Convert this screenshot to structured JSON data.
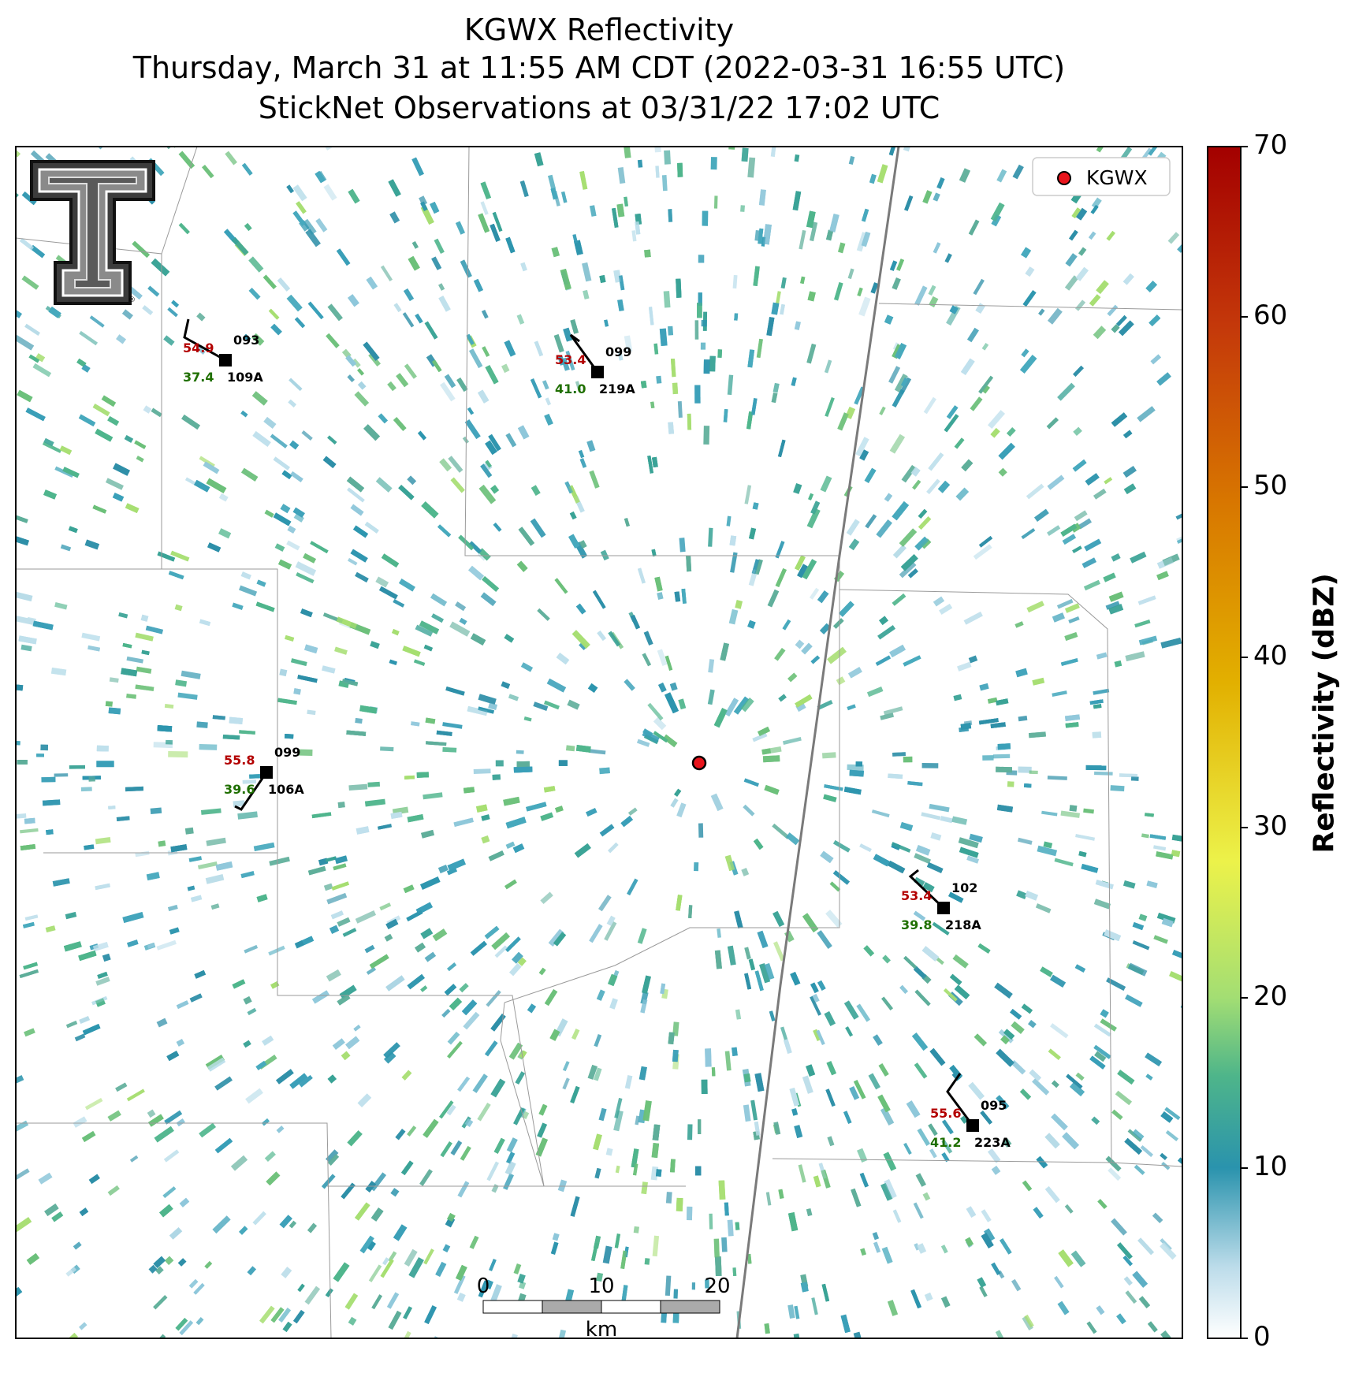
{
  "title": {
    "line1": "KGWX Reflectivity",
    "line2": "Thursday, March 31 at 11:55 AM CDT (2022-03-31 16:55 UTC)",
    "line3": "StickNet Observations at 03/31/22 17:02 UTC"
  },
  "legend": {
    "label": "KGWX",
    "marker_color": "#e8141c"
  },
  "colorbar": {
    "title": "Reflectivity (dBZ)",
    "ticks": [
      "0",
      "10",
      "20",
      "30",
      "40",
      "50",
      "60",
      "70"
    ],
    "colors": [
      "#ffffff",
      "#3a9fb8",
      "#a8df70",
      "#eaf24a",
      "#e0a800",
      "#d5600a",
      "#b81c0a",
      "#a00000"
    ]
  },
  "scalebar": {
    "ticks": [
      "0",
      "10",
      "20"
    ],
    "unit": "km"
  },
  "stations": [
    {
      "id": "109A",
      "temp": "54.9",
      "dew": "37.4",
      "pressure": "093"
    },
    {
      "id": "219A",
      "temp": "53.4",
      "dew": "41.0",
      "pressure": "099"
    },
    {
      "id": "106A",
      "temp": "55.8",
      "dew": "39.6",
      "pressure": "099"
    },
    {
      "id": "218A",
      "temp": "53.4",
      "dew": "39.8",
      "pressure": "102"
    },
    {
      "id": "223A",
      "temp": "55.6",
      "dew": "41.2",
      "pressure": "095"
    }
  ],
  "styles": {
    "temp_color": "#b30000",
    "dew_color": "#1f6f00"
  }
}
